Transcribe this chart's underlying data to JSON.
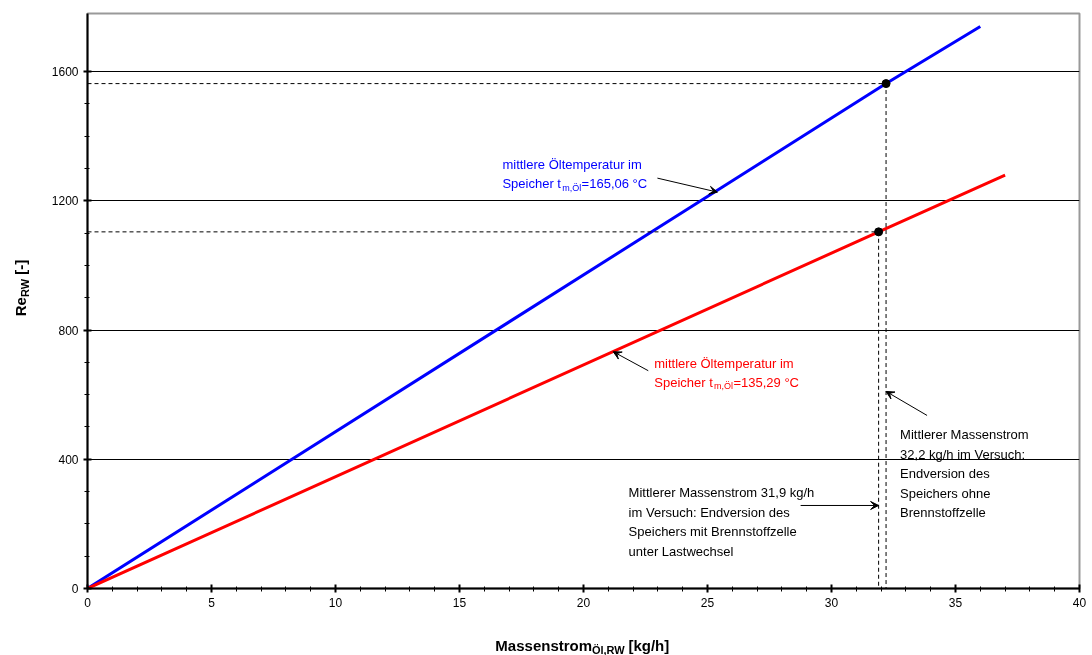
{
  "chart_data": {
    "type": "line",
    "xlabel": "Massenstrom$_{Öl,RW}$ [kg/h]",
    "ylabel": "Re$_{RW}$ [-]",
    "xlim": [
      0,
      40
    ],
    "xticks": [
      0,
      5,
      10,
      15,
      20,
      25,
      30,
      35,
      40
    ],
    "ylim": [
      0,
      1780
    ],
    "yticks": [
      0,
      400,
      800,
      1200,
      1600
    ],
    "grid": "y",
    "series": [
      {
        "color": "#0000ff",
        "x": [
          0,
          32.2,
          36
        ],
        "values": [
          0,
          1563,
          1740
        ]
      },
      {
        "color": "#ff0000",
        "x": [
          0,
          31.9,
          37
        ],
        "values": [
          0,
          1104,
          1280
        ]
      },
      {
        "color": "#000000",
        "line_style": "dashed",
        "x": [
          0,
          32.2,
          32.2
        ],
        "values": [
          1563,
          1563,
          0
        ]
      },
      {
        "color": "#000000",
        "line_style": "dashed",
        "x": [
          0,
          31.9,
          31.9
        ],
        "values": [
          1104,
          1104,
          0
        ]
      },
      {
        "type": "scatter",
        "color": "#000000",
        "marker": "circle",
        "x": [
          32.2,
          31.9
        ],
        "values": [
          1563,
          1104
        ]
      }
    ],
    "annotations": [
      {
        "text": "mittlere Öltemperatur im\nSpeicher t$_{m,Öl}$=165,06 °C",
        "x": 25.4,
        "y": 1227
      },
      {
        "text": "mittlere Öltemperatur im\nSpeicher t$_{m,Öl}$=135,29 °C",
        "x": 21.2,
        "y": 733
      },
      {
        "text": "Mittlerer Massenstrom\n32,2 kg/h im Versuch:\nEndversion des\nSpeichers ohne\nBrennstoffzelle",
        "x": 32.2,
        "y": 610
      },
      {
        "text": "Mittlerer Massenstrom 31,9 kg/h\nim Versuch: Endversion des\nSpeichers mit Brennstoffzelle\nunter Lastwechsel",
        "x": 31.9,
        "y": 257
      }
    ]
  }
}
